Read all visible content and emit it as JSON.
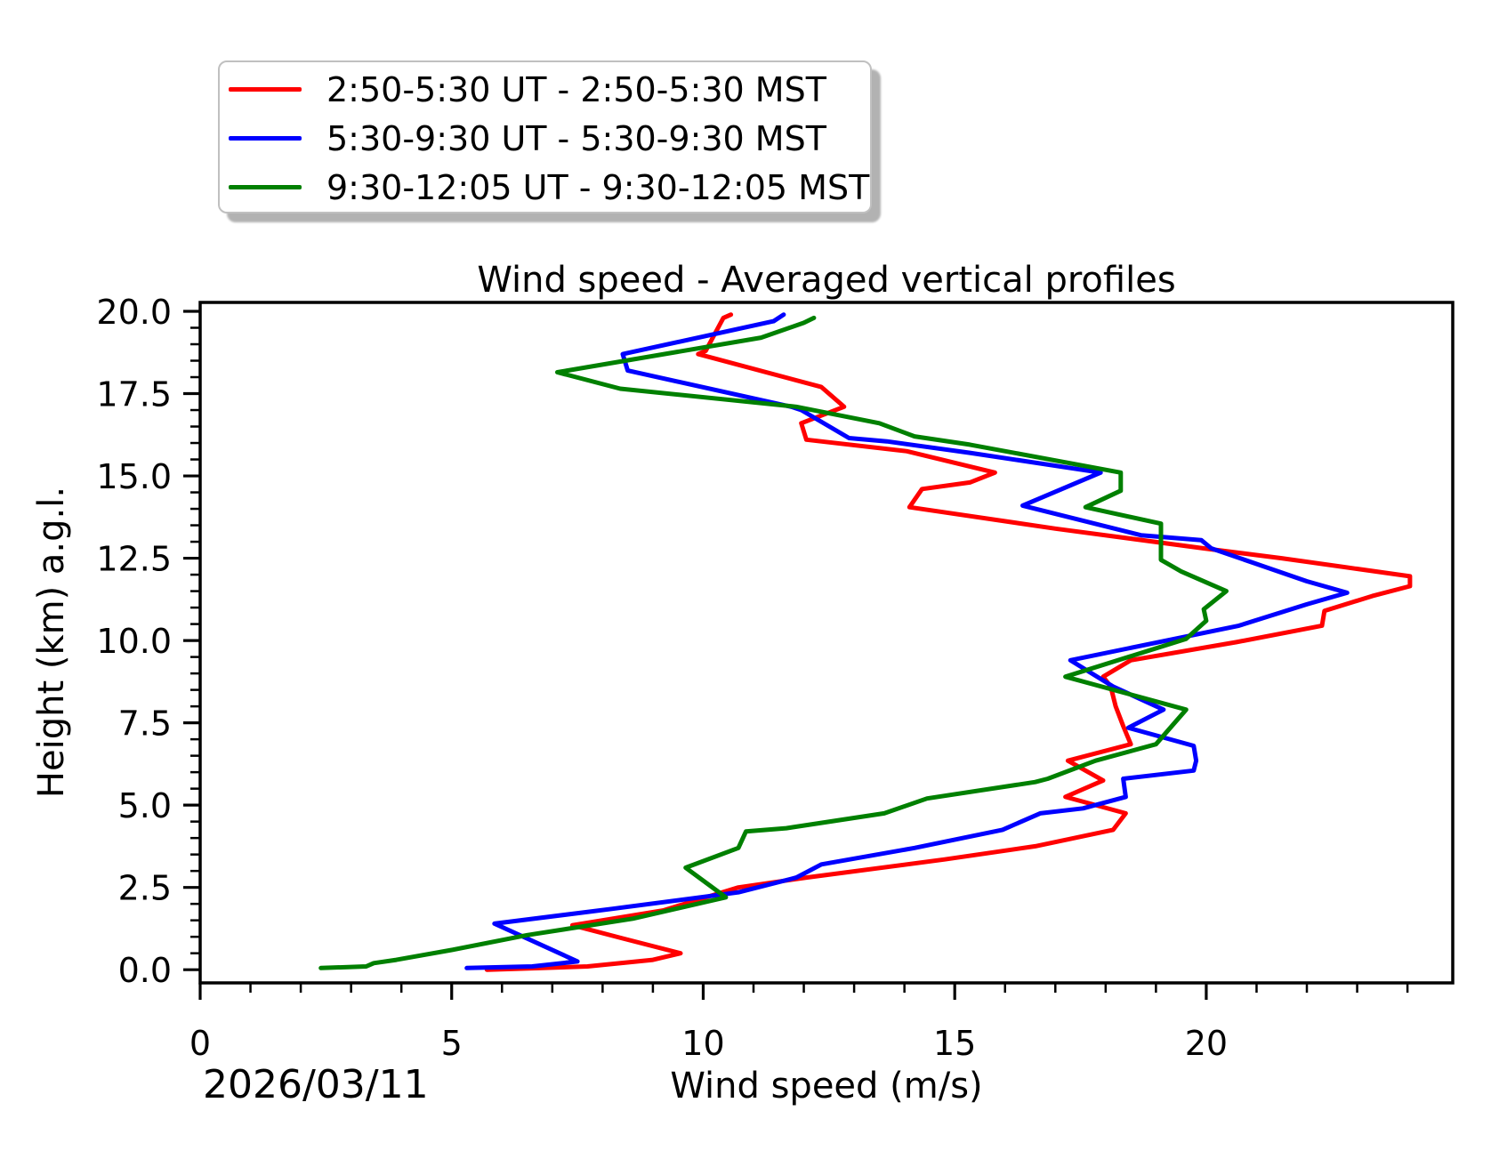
{
  "figure": {
    "title": "Wind speed - Averaged vertical profiles",
    "xlabel": "Wind speed (m/s)",
    "ylabel": "Height (km) a.g.l.",
    "date_label": "2026/03/11",
    "background_color": "#ffffff",
    "frame_color": "#000000"
  },
  "legend": {
    "entries": [
      {
        "label": "2:50-5:30 UT - 2:50-5:30 MST",
        "color": "#ff0000"
      },
      {
        "label": "5:30-9:30 UT - 5:30-9:30 MST",
        "color": "#0000ff"
      },
      {
        "label": "9:30-12:05 UT - 9:30-12:05 MST",
        "color": "#008000"
      }
    ]
  },
  "chart_data": {
    "type": "line",
    "title": "Wind speed - Averaged vertical profiles",
    "xlabel": "Wind speed (m/s)",
    "ylabel": "Height (km) a.g.l.",
    "date": "2026/03/11",
    "orientation": "vertical-profile (x = wind speed m/s, y = height km a.g.l.)",
    "xlim": [
      0,
      24.9
    ],
    "ylim": [
      -0.4,
      20.27
    ],
    "xticks_major": [
      0,
      5,
      10,
      15,
      20
    ],
    "xtick_labels": [
      "0",
      "5",
      "10",
      "15",
      "20"
    ],
    "x_minor_step": 1,
    "yticks_major": [
      0,
      2.5,
      5,
      7.5,
      10,
      12.5,
      15,
      17.5,
      20
    ],
    "ytick_labels": [
      "0.0",
      "2.5",
      "5.0",
      "7.5",
      "10.0",
      "12.5",
      "15.0",
      "17.5",
      "20.0"
    ],
    "y_minor_step": 0.5,
    "grid": false,
    "legend_position": "upper-left, outside axes (figure top-left)",
    "series": [
      {
        "name": "2:50-5:30 UT - 2:50-5:30 MST",
        "color": "#ff0000",
        "points": [
          [
            5.7,
            0.0
          ],
          [
            6.8,
            0.05
          ],
          [
            7.7,
            0.1
          ],
          [
            9.0,
            0.3
          ],
          [
            9.55,
            0.5
          ],
          [
            8.4,
            0.95
          ],
          [
            7.4,
            1.35
          ],
          [
            9.2,
            1.8
          ],
          [
            10.7,
            2.5
          ],
          [
            12.05,
            2.8
          ],
          [
            14.8,
            3.35
          ],
          [
            16.6,
            3.75
          ],
          [
            18.15,
            4.25
          ],
          [
            18.4,
            4.75
          ],
          [
            17.2,
            5.25
          ],
          [
            17.95,
            5.75
          ],
          [
            17.25,
            6.35
          ],
          [
            18.5,
            6.85
          ],
          [
            18.35,
            7.4
          ],
          [
            18.2,
            8.0
          ],
          [
            18.1,
            8.6
          ],
          [
            17.95,
            8.9
          ],
          [
            18.5,
            9.4
          ],
          [
            20.6,
            9.95
          ],
          [
            22.3,
            10.45
          ],
          [
            22.35,
            10.9
          ],
          [
            23.3,
            11.35
          ],
          [
            24.05,
            11.65
          ],
          [
            24.05,
            11.95
          ],
          [
            21.5,
            12.5
          ],
          [
            19.95,
            12.8
          ],
          [
            17.0,
            13.4
          ],
          [
            14.1,
            14.05
          ],
          [
            14.35,
            14.6
          ],
          [
            15.3,
            14.8
          ],
          [
            15.8,
            15.1
          ],
          [
            14.05,
            15.75
          ],
          [
            12.05,
            16.1
          ],
          [
            11.95,
            16.6
          ],
          [
            12.8,
            17.1
          ],
          [
            12.35,
            17.7
          ],
          [
            9.9,
            18.7
          ],
          [
            10.05,
            18.8
          ],
          [
            10.4,
            19.8
          ],
          [
            10.55,
            19.9
          ]
        ]
      },
      {
        "name": "5:30-9:30 UT - 5:30-9:30 MST",
        "color": "#0000ff",
        "points": [
          [
            5.3,
            0.05
          ],
          [
            6.6,
            0.1
          ],
          [
            7.5,
            0.25
          ],
          [
            5.85,
            1.4
          ],
          [
            8.2,
            1.85
          ],
          [
            10.7,
            2.35
          ],
          [
            11.85,
            2.8
          ],
          [
            12.35,
            3.2
          ],
          [
            14.2,
            3.7
          ],
          [
            15.95,
            4.25
          ],
          [
            16.7,
            4.75
          ],
          [
            17.55,
            4.9
          ],
          [
            18.4,
            5.25
          ],
          [
            18.35,
            5.8
          ],
          [
            19.75,
            6.05
          ],
          [
            19.8,
            6.35
          ],
          [
            19.75,
            6.8
          ],
          [
            18.45,
            7.35
          ],
          [
            19.15,
            7.9
          ],
          [
            18.15,
            8.6
          ],
          [
            17.3,
            9.4
          ],
          [
            20.65,
            10.45
          ],
          [
            22.0,
            11.1
          ],
          [
            22.8,
            11.45
          ],
          [
            22.0,
            11.8
          ],
          [
            20.1,
            12.8
          ],
          [
            19.9,
            13.05
          ],
          [
            18.7,
            13.2
          ],
          [
            16.35,
            14.1
          ],
          [
            17.9,
            15.1
          ],
          [
            15.3,
            15.7
          ],
          [
            13.65,
            16.05
          ],
          [
            12.9,
            16.15
          ],
          [
            11.95,
            17.0
          ],
          [
            11.75,
            17.1
          ],
          [
            8.5,
            18.2
          ],
          [
            8.4,
            18.7
          ],
          [
            11.4,
            19.7
          ],
          [
            11.6,
            19.9
          ]
        ]
      },
      {
        "name": "9:30-12:05 UT - 9:30-12:05 MST",
        "color": "#008000",
        "points": [
          [
            2.4,
            0.05
          ],
          [
            3.3,
            0.1
          ],
          [
            3.45,
            0.2
          ],
          [
            3.9,
            0.3
          ],
          [
            5.0,
            0.6
          ],
          [
            6.5,
            1.05
          ],
          [
            8.6,
            1.55
          ],
          [
            10.45,
            2.2
          ],
          [
            9.65,
            3.1
          ],
          [
            10.7,
            3.7
          ],
          [
            10.85,
            4.2
          ],
          [
            11.65,
            4.3
          ],
          [
            13.6,
            4.75
          ],
          [
            14.45,
            5.2
          ],
          [
            16.6,
            5.7
          ],
          [
            16.85,
            5.8
          ],
          [
            17.8,
            6.35
          ],
          [
            19.0,
            6.85
          ],
          [
            19.6,
            7.9
          ],
          [
            17.2,
            8.9
          ],
          [
            19.6,
            10.05
          ],
          [
            20.0,
            10.6
          ],
          [
            19.95,
            10.95
          ],
          [
            20.4,
            11.5
          ],
          [
            19.5,
            12.1
          ],
          [
            19.1,
            12.45
          ],
          [
            19.1,
            13.0
          ],
          [
            19.1,
            13.55
          ],
          [
            17.6,
            14.05
          ],
          [
            18.3,
            14.55
          ],
          [
            18.3,
            15.1
          ],
          [
            15.3,
            15.95
          ],
          [
            14.2,
            16.2
          ],
          [
            13.5,
            16.6
          ],
          [
            11.85,
            17.1
          ],
          [
            8.35,
            17.65
          ],
          [
            7.1,
            18.15
          ],
          [
            11.15,
            19.2
          ],
          [
            12.0,
            19.65
          ],
          [
            12.2,
            19.8
          ]
        ]
      }
    ]
  }
}
